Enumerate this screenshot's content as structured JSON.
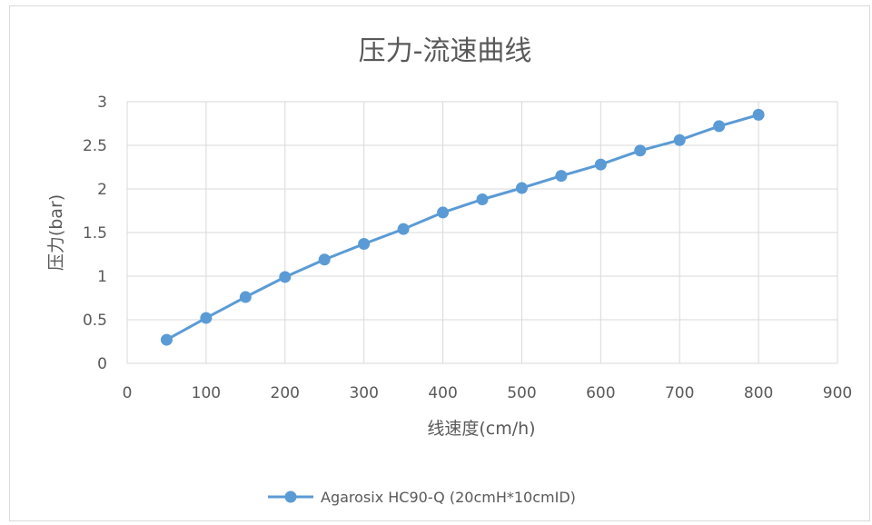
{
  "chart_data": {
    "type": "line",
    "title": "压力-流速曲线",
    "xlabel": "线速度(cm/h)",
    "ylabel": "压力(bar)",
    "xlim": [
      0,
      900
    ],
    "ylim": [
      0,
      3
    ],
    "x_ticks": [
      "0",
      "100",
      "200",
      "300",
      "400",
      "500",
      "600",
      "700",
      "800",
      "900"
    ],
    "y_ticks": [
      "0",
      "0.5",
      "1",
      "1.5",
      "2",
      "2.5",
      "3"
    ],
    "grid": true,
    "legend_position": "bottom",
    "series": [
      {
        "name": "Agarosix HC90-Q (20cmH*10cmID)",
        "color": "#5b9bd5",
        "marker": "circle",
        "x": [
          50,
          100,
          150,
          200,
          250,
          300,
          350,
          400,
          450,
          500,
          550,
          600,
          650,
          700,
          750,
          800
        ],
        "y": [
          0.27,
          0.52,
          0.76,
          0.99,
          1.19,
          1.37,
          1.54,
          1.73,
          1.88,
          2.01,
          2.15,
          2.28,
          2.44,
          2.56,
          2.72,
          2.85
        ]
      }
    ]
  }
}
